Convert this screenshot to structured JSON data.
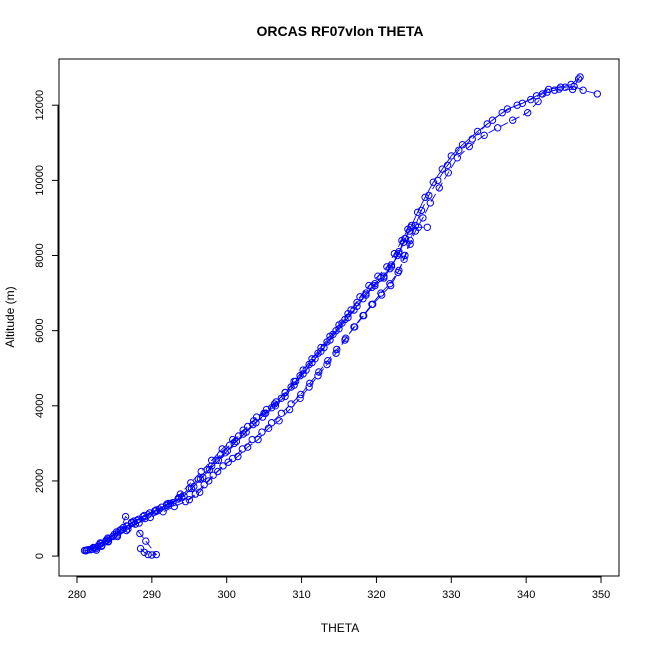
{
  "chart_data": {
    "type": "scatter",
    "title": "ORCAS RF07vlon THETA",
    "xlabel": "THETA",
    "ylabel": "Altitude (m)",
    "xlim": [
      280,
      350
    ],
    "ylim": [
      0,
      12700
    ],
    "x_ticks": [
      280,
      290,
      300,
      310,
      320,
      330,
      340,
      350
    ],
    "y_ticks": [
      0,
      2000,
      4000,
      6000,
      8000,
      10000,
      12000
    ],
    "grid": false,
    "legend": "none",
    "color": "#0000ff",
    "series": [
      {
        "line": "dashed",
        "points": [
          [
            281.0,
            150
          ],
          [
            281.8,
            170
          ],
          [
            282.5,
            200
          ],
          [
            283.3,
            260
          ],
          [
            284.2,
            380
          ],
          [
            285.4,
            520
          ],
          [
            286.6,
            680
          ],
          [
            287.8,
            850
          ],
          [
            289.1,
            1000
          ],
          [
            290.5,
            1200
          ],
          [
            292.0,
            1380
          ],
          [
            293.5,
            1520
          ],
          [
            295.0,
            1500
          ],
          [
            296.4,
            1700
          ],
          [
            297.6,
            2000
          ],
          [
            298.8,
            2250
          ],
          [
            300.2,
            2500
          ],
          [
            301.5,
            2650
          ],
          [
            302.8,
            2900
          ],
          [
            304.2,
            3100
          ],
          [
            305.6,
            3400
          ],
          [
            307.0,
            3600
          ],
          [
            308.4,
            3900
          ],
          [
            309.8,
            4200
          ],
          [
            311.0,
            4500
          ],
          [
            312.2,
            4800
          ],
          [
            313.4,
            5100
          ],
          [
            314.6,
            5400
          ],
          [
            315.8,
            5750
          ],
          [
            317.0,
            6100
          ],
          [
            318.2,
            6400
          ],
          [
            319.4,
            6700
          ],
          [
            320.6,
            7000
          ],
          [
            321.8,
            7250
          ],
          [
            323.0,
            7600
          ],
          [
            323.8,
            8000
          ],
          [
            324.5,
            8400
          ],
          [
            325.2,
            8800
          ],
          [
            326.0,
            9200
          ],
          [
            327.0,
            9600
          ],
          [
            328.2,
            10000
          ],
          [
            329.5,
            10400
          ],
          [
            331.0,
            10800
          ],
          [
            332.8,
            11100
          ],
          [
            334.8,
            11500
          ],
          [
            336.8,
            11800
          ],
          [
            338.8,
            12000
          ],
          [
            340.6,
            12150
          ],
          [
            342.2,
            12300
          ],
          [
            343.8,
            12400
          ],
          [
            345.2,
            12480
          ],
          [
            346.4,
            12500
          ],
          [
            347.6,
            12400
          ],
          [
            349.5,
            12300
          ]
        ]
      },
      {
        "line": "dashed",
        "points": [
          [
            281.5,
            170
          ],
          [
            282.3,
            220
          ],
          [
            283.2,
            330
          ],
          [
            284.2,
            450
          ],
          [
            285.5,
            620
          ],
          [
            286.8,
            800
          ],
          [
            288.2,
            980
          ],
          [
            289.7,
            1150
          ],
          [
            291.3,
            1300
          ],
          [
            292.8,
            1420
          ],
          [
            294.3,
            1600
          ],
          [
            295.6,
            1850
          ],
          [
            296.8,
            2100
          ],
          [
            298.0,
            2400
          ],
          [
            299.2,
            2700
          ],
          [
            300.4,
            2950
          ],
          [
            301.6,
            3200
          ],
          [
            302.8,
            3450
          ],
          [
            304.0,
            3700
          ],
          [
            305.3,
            3900
          ],
          [
            306.6,
            4100
          ],
          [
            307.8,
            4350
          ],
          [
            309.0,
            4650
          ],
          [
            310.2,
            4950
          ],
          [
            311.4,
            5250
          ],
          [
            312.6,
            5550
          ],
          [
            313.8,
            5850
          ],
          [
            315.0,
            6150
          ],
          [
            316.2,
            6450
          ],
          [
            317.4,
            6750
          ],
          [
            318.6,
            7000
          ],
          [
            319.8,
            7250
          ],
          [
            321.0,
            7450
          ],
          [
            322.0,
            7750
          ],
          [
            323.0,
            8100
          ],
          [
            323.8,
            8450
          ],
          [
            324.6,
            8750
          ],
          [
            325.6,
            8750
          ],
          [
            326.8,
            8750
          ]
        ]
      },
      {
        "line": "dashed",
        "points": [
          [
            282.0,
            180
          ],
          [
            282.8,
            250
          ],
          [
            283.8,
            380
          ],
          [
            284.8,
            520
          ],
          [
            286.0,
            700
          ],
          [
            287.3,
            880
          ],
          [
            288.8,
            1050
          ],
          [
            290.4,
            1200
          ],
          [
            292.0,
            1350
          ],
          [
            293.6,
            1550
          ],
          [
            295.0,
            1800
          ],
          [
            296.2,
            2050
          ],
          [
            297.4,
            2300
          ],
          [
            298.6,
            2550
          ],
          [
            299.8,
            2750
          ],
          [
            301.0,
            3000
          ],
          [
            302.2,
            3250
          ],
          [
            303.5,
            3500
          ],
          [
            304.8,
            3700
          ],
          [
            306.0,
            3950
          ],
          [
            307.3,
            4200
          ],
          [
            308.6,
            4500
          ],
          [
            309.8,
            4800
          ],
          [
            311.0,
            5100
          ],
          [
            312.2,
            5400
          ],
          [
            313.4,
            5700
          ],
          [
            314.6,
            6000
          ],
          [
            315.8,
            6300
          ],
          [
            317.0,
            6550
          ],
          [
            318.2,
            6850
          ],
          [
            319.4,
            7150
          ],
          [
            320.6,
            7400
          ],
          [
            321.8,
            7650
          ],
          [
            322.8,
            8000
          ],
          [
            323.6,
            8350
          ],
          [
            324.4,
            8650
          ]
        ]
      },
      {
        "line": "dashed",
        "points": [
          [
            281.2,
            140
          ],
          [
            282.0,
            190
          ],
          [
            282.9,
            290
          ],
          [
            283.9,
            420
          ],
          [
            285.0,
            580
          ],
          [
            286.2,
            760
          ],
          [
            287.6,
            930
          ],
          [
            289.0,
            1080
          ],
          [
            290.6,
            1230
          ],
          [
            292.2,
            1400
          ],
          [
            293.8,
            1650
          ],
          [
            295.2,
            1950
          ],
          [
            296.6,
            2250
          ],
          [
            298.0,
            2550
          ],
          [
            299.4,
            2850
          ],
          [
            300.8,
            3100
          ],
          [
            302.2,
            3350
          ],
          [
            303.6,
            3600
          ],
          [
            305.0,
            3800
          ],
          [
            306.4,
            4050
          ],
          [
            307.8,
            4350
          ],
          [
            309.2,
            4650
          ],
          [
            310.6,
            4950
          ],
          [
            311.8,
            5250
          ],
          [
            313.0,
            5550
          ],
          [
            314.2,
            5900
          ],
          [
            315.4,
            6200
          ],
          [
            316.6,
            6550
          ],
          [
            317.8,
            6900
          ],
          [
            319.0,
            7200
          ],
          [
            320.2,
            7450
          ],
          [
            321.4,
            7700
          ],
          [
            322.4,
            8050
          ],
          [
            323.4,
            8400
          ],
          [
            324.2,
            8700
          ]
        ]
      },
      {
        "line": "dashed",
        "points": [
          [
            282.6,
            160
          ],
          [
            283.3,
            280
          ],
          [
            284.2,
            400
          ],
          [
            285.4,
            560
          ],
          [
            286.8,
            720
          ],
          [
            288.3,
            880
          ],
          [
            289.8,
            1030
          ],
          [
            291.5,
            1180
          ],
          [
            293.0,
            1320
          ],
          [
            294.5,
            1450
          ],
          [
            295.8,
            1650
          ],
          [
            297.0,
            1900
          ],
          [
            298.2,
            2150
          ],
          [
            299.5,
            2400
          ],
          [
            300.8,
            2600
          ],
          [
            302.1,
            2850
          ],
          [
            303.4,
            3100
          ],
          [
            304.7,
            3300
          ],
          [
            306.0,
            3550
          ],
          [
            307.3,
            3800
          ],
          [
            308.6,
            4050
          ],
          [
            309.9,
            4300
          ],
          [
            311.1,
            4600
          ],
          [
            312.3,
            4900
          ],
          [
            313.5,
            5200
          ],
          [
            314.7,
            5500
          ],
          [
            315.9,
            5800
          ],
          [
            317.1,
            6100
          ],
          [
            318.3,
            6400
          ],
          [
            319.5,
            6700
          ],
          [
            320.7,
            6950
          ],
          [
            321.9,
            7200
          ],
          [
            322.9,
            7550
          ],
          [
            323.7,
            7900
          ],
          [
            324.5,
            8300
          ],
          [
            325.2,
            8650
          ],
          [
            326.2,
            9000
          ],
          [
            327.2,
            9400
          ],
          [
            328.4,
            9800
          ],
          [
            329.6,
            10200
          ],
          [
            330.8,
            10600
          ],
          [
            332.4,
            10900
          ],
          [
            334.4,
            11200
          ],
          [
            336.2,
            11400
          ],
          [
            338.2,
            11600
          ],
          [
            340.2,
            11800
          ],
          [
            341.6,
            12100
          ],
          [
            342.8,
            12350
          ],
          [
            344.4,
            12430
          ],
          [
            346.2,
            12420
          ],
          [
            347.0,
            12700
          ]
        ]
      },
      {
        "line": "solid",
        "points": [
          [
            281.3,
            160
          ],
          [
            282.2,
            230
          ],
          [
            283.1,
            350
          ],
          [
            284.1,
            480
          ],
          [
            285.3,
            640
          ],
          [
            286.6,
            800
          ],
          [
            288.0,
            950
          ],
          [
            289.5,
            1100
          ],
          [
            291.0,
            1250
          ],
          [
            292.5,
            1400
          ],
          [
            294.0,
            1550
          ],
          [
            295.3,
            1800
          ],
          [
            296.5,
            2050
          ],
          [
            297.7,
            2300
          ],
          [
            298.9,
            2550
          ],
          [
            300.1,
            2800
          ],
          [
            301.3,
            3050
          ],
          [
            302.6,
            3300
          ],
          [
            303.9,
            3550
          ],
          [
            305.2,
            3800
          ],
          [
            306.5,
            4000
          ],
          [
            307.8,
            4250
          ],
          [
            309.0,
            4550
          ],
          [
            310.2,
            4850
          ],
          [
            311.4,
            5150
          ],
          [
            312.6,
            5450
          ],
          [
            313.8,
            5750
          ],
          [
            315.0,
            6050
          ],
          [
            316.2,
            6350
          ],
          [
            317.4,
            6650
          ],
          [
            318.6,
            6950
          ],
          [
            319.8,
            7200
          ],
          [
            321.0,
            7400
          ],
          [
            322.0,
            7700
          ],
          [
            323.0,
            8050
          ],
          [
            323.9,
            8450
          ],
          [
            324.7,
            8800
          ],
          [
            325.5,
            9150
          ],
          [
            326.5,
            9550
          ],
          [
            327.6,
            9950
          ],
          [
            328.8,
            10300
          ],
          [
            330.0,
            10650
          ],
          [
            331.5,
            10950
          ],
          [
            333.5,
            11300
          ],
          [
            335.5,
            11600
          ],
          [
            337.5,
            11900
          ],
          [
            339.5,
            12050
          ],
          [
            341.4,
            12250
          ],
          [
            343.0,
            12420
          ],
          [
            344.6,
            12480
          ],
          [
            346.0,
            12550
          ],
          [
            347.2,
            12750
          ]
        ]
      },
      {
        "line": "dashed",
        "points": [
          [
            288.5,
            200
          ],
          [
            289.0,
            100
          ],
          [
            289.5,
            40
          ],
          [
            290.0,
            30
          ],
          [
            290.6,
            40
          ],
          [
            289.2,
            400
          ],
          [
            288.4,
            600
          ],
          [
            287.3,
            900
          ],
          [
            286.5,
            1050
          ],
          [
            285.8,
            700
          ]
        ]
      }
    ]
  }
}
